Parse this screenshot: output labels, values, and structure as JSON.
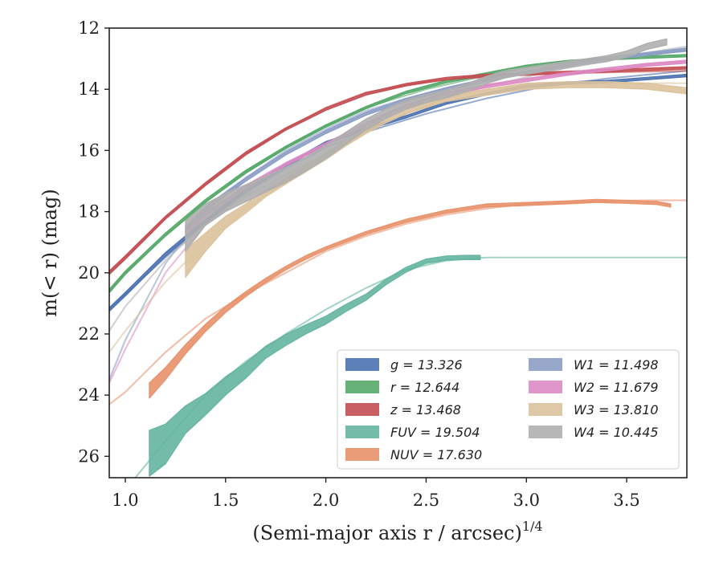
{
  "chart_data": {
    "type": "line",
    "title": "",
    "xlabel": "(Semi-major axis r / arcsec)",
    "xlabel_exponent": "1/4",
    "ylabel": "m(< r) (mag)",
    "xlim": [
      0.92,
      3.8
    ],
    "ylim": [
      26.7,
      12.0
    ],
    "y_inverted": true,
    "grid": false,
    "legend_position": "lower-right",
    "x_ticks": [
      1.0,
      1.5,
      2.0,
      2.5,
      3.0,
      3.5
    ],
    "x_tick_labels": [
      "1.0",
      "1.5",
      "2.0",
      "2.5",
      "3.0",
      "3.5"
    ],
    "y_ticks": [
      12,
      14,
      16,
      18,
      20,
      22,
      24,
      26
    ],
    "y_tick_labels": [
      "12",
      "14",
      "16",
      "18",
      "20",
      "22",
      "24",
      "26"
    ],
    "series": [
      {
        "name": "g = 13.326",
        "band": "g",
        "total_mag": "13.326",
        "color": "#4C72B0",
        "model_x": [
          0.92,
          1.0,
          1.2,
          1.4,
          1.6,
          1.8,
          2.0,
          2.2,
          2.5,
          2.8,
          3.1,
          3.4,
          3.8
        ],
        "model_y": [
          21.2,
          20.7,
          19.5,
          18.4,
          17.4,
          16.6,
          15.9,
          15.4,
          14.8,
          14.3,
          13.9,
          13.65,
          13.4
        ],
        "obs_x": [
          0.92,
          1.0,
          1.2,
          1.4,
          1.6,
          1.8,
          2.0,
          2.2,
          2.4,
          2.6,
          2.8,
          3.0,
          3.2,
          3.4,
          3.6,
          3.8
        ],
        "obs_y": [
          21.2,
          20.7,
          19.4,
          18.3,
          17.3,
          16.5,
          15.75,
          15.3,
          14.9,
          14.45,
          14.15,
          13.9,
          13.8,
          13.75,
          13.65,
          13.55
        ],
        "band_halfwidth": [
          0.06,
          0.06,
          0.06,
          0.05,
          0.05,
          0.05,
          0.04,
          0.04,
          0.04,
          0.04,
          0.04,
          0.04,
          0.04,
          0.04,
          0.04,
          0.04
        ]
      },
      {
        "name": "r = 12.644",
        "band": "r",
        "total_mag": "12.644",
        "color": "#55A868",
        "model_x": [
          0.92,
          1.0,
          1.2,
          1.4,
          1.6,
          1.8,
          2.0,
          2.2,
          2.5,
          2.8,
          3.1,
          3.4,
          3.8
        ],
        "model_y": [
          20.6,
          20.0,
          18.8,
          17.7,
          16.7,
          15.9,
          15.2,
          14.6,
          14.0,
          13.55,
          13.2,
          12.95,
          12.75
        ],
        "obs_x": [
          0.92,
          1.0,
          1.2,
          1.4,
          1.6,
          1.8,
          2.0,
          2.2,
          2.4,
          2.6,
          2.8,
          3.0,
          3.2,
          3.4,
          3.6,
          3.8
        ],
        "obs_y": [
          20.6,
          20.0,
          18.75,
          17.65,
          16.7,
          15.9,
          15.2,
          14.6,
          14.1,
          13.75,
          13.5,
          13.25,
          13.1,
          13.0,
          12.95,
          12.9
        ],
        "band_halfwidth": [
          0.06,
          0.06,
          0.05,
          0.05,
          0.05,
          0.04,
          0.04,
          0.04,
          0.04,
          0.04,
          0.04,
          0.04,
          0.04,
          0.04,
          0.04,
          0.04
        ]
      },
      {
        "name": "z = 13.468",
        "band": "z",
        "total_mag": "13.468",
        "color": "#C44E52",
        "model_x": [
          0.92,
          1.0,
          1.2,
          1.4,
          1.6,
          1.8,
          2.0,
          2.2,
          2.5,
          2.8,
          3.1,
          3.4,
          3.8
        ],
        "model_y": [
          20.0,
          19.5,
          18.2,
          17.1,
          16.1,
          15.3,
          14.6,
          14.1,
          13.75,
          13.6,
          13.5,
          13.45,
          13.4
        ],
        "obs_x": [
          0.92,
          1.0,
          1.2,
          1.4,
          1.6,
          1.8,
          2.0,
          2.2,
          2.4,
          2.6,
          2.8,
          3.0,
          3.2,
          3.4,
          3.6,
          3.8
        ],
        "obs_y": [
          20.0,
          19.5,
          18.2,
          17.1,
          16.1,
          15.3,
          14.65,
          14.15,
          13.85,
          13.65,
          13.55,
          13.5,
          13.45,
          13.4,
          13.35,
          13.3
        ],
        "band_halfwidth": [
          0.06,
          0.06,
          0.05,
          0.05,
          0.05,
          0.04,
          0.04,
          0.04,
          0.04,
          0.04,
          0.04,
          0.04,
          0.04,
          0.04,
          0.04,
          0.04
        ]
      },
      {
        "name": "FUV = 19.504",
        "band": "FUV",
        "total_mag": "19.504",
        "color": "#64B5A0",
        "model_x": [
          1.05,
          1.2,
          1.4,
          1.6,
          1.8,
          2.0,
          2.2,
          2.4,
          2.6,
          2.8,
          3.0,
          3.4,
          3.8
        ],
        "model_y": [
          26.7,
          25.5,
          24.0,
          22.9,
          22.0,
          21.2,
          20.5,
          19.9,
          19.6,
          19.5,
          19.5,
          19.5,
          19.5
        ],
        "obs_x": [
          1.12,
          1.2,
          1.3,
          1.4,
          1.5,
          1.6,
          1.7,
          1.8,
          1.9,
          2.0,
          2.1,
          2.2,
          2.3,
          2.4,
          2.5,
          2.6,
          2.7,
          2.77
        ],
        "obs_y": [
          25.9,
          25.6,
          24.8,
          24.3,
          23.7,
          23.2,
          22.6,
          22.2,
          21.85,
          21.55,
          21.15,
          20.8,
          20.3,
          19.9,
          19.62,
          19.52,
          19.5,
          19.5
        ],
        "band_halfwidth": [
          0.75,
          0.65,
          0.45,
          0.35,
          0.3,
          0.25,
          0.2,
          0.18,
          0.15,
          0.13,
          0.12,
          0.1,
          0.09,
          0.08,
          0.07,
          0.07,
          0.07,
          0.07
        ]
      },
      {
        "name": "NUV = 17.630",
        "band": "NUV",
        "total_mag": "17.630",
        "color": "#E8916A",
        "model_x": [
          0.92,
          1.0,
          1.2,
          1.4,
          1.6,
          1.8,
          2.0,
          2.2,
          2.4,
          2.6,
          2.8,
          3.0,
          3.2,
          3.4,
          3.6,
          3.8
        ],
        "model_y": [
          24.3,
          23.9,
          22.6,
          21.5,
          20.7,
          20.0,
          19.3,
          18.8,
          18.4,
          18.1,
          17.9,
          17.75,
          17.7,
          17.65,
          17.63,
          17.63
        ],
        "obs_x": [
          1.12,
          1.2,
          1.3,
          1.4,
          1.5,
          1.6,
          1.7,
          1.8,
          1.9,
          2.0,
          2.2,
          2.4,
          2.6,
          2.8,
          3.0,
          3.2,
          3.35,
          3.5,
          3.65,
          3.72
        ],
        "obs_y": [
          23.85,
          23.3,
          22.5,
          21.8,
          21.2,
          20.7,
          20.25,
          19.85,
          19.5,
          19.2,
          18.7,
          18.3,
          18.0,
          17.8,
          17.75,
          17.7,
          17.65,
          17.68,
          17.72,
          17.8
        ],
        "band_halfwidth": [
          0.25,
          0.2,
          0.15,
          0.12,
          0.1,
          0.08,
          0.07,
          0.06,
          0.06,
          0.05,
          0.05,
          0.05,
          0.05,
          0.05,
          0.05,
          0.05,
          0.05,
          0.05,
          0.05,
          0.05
        ]
      },
      {
        "name": "W1 = 11.498",
        "band": "W1",
        "total_mag": "11.498",
        "color": "#8C9DC4",
        "model_x": [
          0.92,
          1.0,
          1.2,
          1.4,
          1.6,
          1.8,
          2.0,
          2.2,
          2.4,
          2.6,
          2.8,
          3.0,
          3.2,
          3.4,
          3.6,
          3.8
        ],
        "model_y": [
          23.5,
          22.2,
          19.7,
          18.0,
          16.9,
          16.0,
          15.3,
          14.7,
          14.3,
          13.95,
          13.65,
          13.4,
          13.2,
          13.0,
          12.85,
          12.7
        ],
        "obs_x": [
          1.3,
          1.4,
          1.6,
          1.8,
          2.0,
          2.2,
          2.4,
          2.6,
          2.8,
          3.0,
          3.2,
          3.4,
          3.6,
          3.8
        ],
        "obs_y": [
          18.6,
          17.9,
          16.95,
          16.1,
          15.4,
          14.8,
          14.35,
          14.0,
          13.7,
          13.45,
          13.2,
          13.0,
          12.85,
          12.7
        ],
        "band_halfwidth": [
          0.08,
          0.07,
          0.06,
          0.05,
          0.05,
          0.05,
          0.05,
          0.05,
          0.05,
          0.05,
          0.05,
          0.05,
          0.05,
          0.05
        ]
      },
      {
        "name": "W2 = 11.679",
        "band": "W2",
        "total_mag": "11.679",
        "color": "#DD8BC4",
        "model_x": [
          0.92,
          1.0,
          1.2,
          1.4,
          1.6,
          1.8,
          2.0,
          2.2,
          2.4,
          2.6,
          2.8,
          3.0,
          3.2,
          3.4,
          3.6,
          3.8
        ],
        "model_y": [
          23.6,
          22.5,
          20.0,
          18.4,
          17.3,
          16.5,
          15.8,
          15.1,
          14.5,
          14.1,
          13.85,
          13.65,
          13.5,
          13.35,
          13.2,
          13.1
        ],
        "obs_x": [
          1.3,
          1.4,
          1.6,
          1.8,
          2.0,
          2.2,
          2.4,
          2.6,
          2.8,
          3.0,
          3.2,
          3.4,
          3.6,
          3.8
        ],
        "obs_y": [
          18.7,
          18.1,
          17.2,
          16.45,
          15.8,
          15.15,
          14.55,
          14.15,
          13.9,
          13.7,
          13.5,
          13.35,
          13.2,
          13.1
        ],
        "band_halfwidth": [
          0.08,
          0.07,
          0.06,
          0.05,
          0.05,
          0.05,
          0.05,
          0.05,
          0.05,
          0.05,
          0.05,
          0.05,
          0.05,
          0.05
        ]
      },
      {
        "name": "W3 = 13.810",
        "band": "W3",
        "total_mag": "13.810",
        "color": "#DCC29C",
        "model_x": [
          0.92,
          1.0,
          1.2,
          1.4,
          1.6,
          1.8,
          2.0,
          2.2,
          2.4,
          2.6,
          2.8,
          3.0,
          3.2,
          3.4,
          3.6,
          3.8
        ],
        "model_y": [
          22.6,
          21.9,
          20.3,
          19.0,
          17.9,
          17.0,
          16.2,
          15.4,
          14.8,
          14.3,
          14.0,
          13.85,
          13.8,
          13.8,
          13.8,
          13.8
        ],
        "obs_x": [
          1.3,
          1.4,
          1.5,
          1.6,
          1.7,
          1.8,
          1.9,
          2.0,
          2.1,
          2.2,
          2.3,
          2.4,
          2.5,
          2.6,
          2.8,
          3.0,
          3.2,
          3.4,
          3.6,
          3.8
        ],
        "obs_y": [
          19.7,
          19.0,
          18.35,
          17.9,
          17.4,
          17.0,
          16.6,
          16.2,
          15.75,
          15.35,
          15.0,
          14.7,
          14.5,
          14.3,
          14.1,
          13.9,
          13.85,
          13.85,
          13.9,
          14.05
        ],
        "band_halfwidth": [
          0.45,
          0.3,
          0.2,
          0.15,
          0.12,
          0.1,
          0.1,
          0.1,
          0.1,
          0.1,
          0.1,
          0.1,
          0.1,
          0.1,
          0.1,
          0.1,
          0.1,
          0.1,
          0.1,
          0.1
        ]
      },
      {
        "name": "W4 = 10.445",
        "band": "W4",
        "total_mag": "10.445",
        "color": "#AFAFAF",
        "model_x": [
          0.92,
          1.0,
          1.2,
          1.4,
          1.6,
          1.8,
          2.0,
          2.2,
          2.4,
          2.6,
          2.8,
          3.0,
          3.2,
          3.4,
          3.6,
          3.8
        ],
        "model_y": [
          21.9,
          21.1,
          19.6,
          18.4,
          17.5,
          16.8,
          16.1,
          15.4,
          14.8,
          14.3,
          13.9,
          13.6,
          13.3,
          13.05,
          12.8,
          12.6
        ],
        "obs_x": [
          1.3,
          1.4,
          1.5,
          1.6,
          1.7,
          1.8,
          1.9,
          2.0,
          2.1,
          2.2,
          2.3,
          2.4,
          2.5,
          2.6,
          2.7,
          2.8,
          2.9,
          3.0,
          3.1,
          3.2,
          3.3,
          3.4,
          3.5,
          3.6,
          3.7
        ],
        "obs_y": [
          18.8,
          18.1,
          17.7,
          17.4,
          17.1,
          16.8,
          16.45,
          16.05,
          15.6,
          15.15,
          14.8,
          14.5,
          14.3,
          14.15,
          13.95,
          13.7,
          13.5,
          13.4,
          13.3,
          13.2,
          13.1,
          13.0,
          12.85,
          12.6,
          12.45
        ],
        "band_halfwidth": [
          0.5,
          0.35,
          0.3,
          0.28,
          0.26,
          0.25,
          0.23,
          0.22,
          0.2,
          0.18,
          0.16,
          0.15,
          0.14,
          0.13,
          0.13,
          0.12,
          0.12,
          0.11,
          0.11,
          0.11,
          0.1,
          0.1,
          0.1,
          0.1,
          0.1
        ]
      }
    ]
  }
}
